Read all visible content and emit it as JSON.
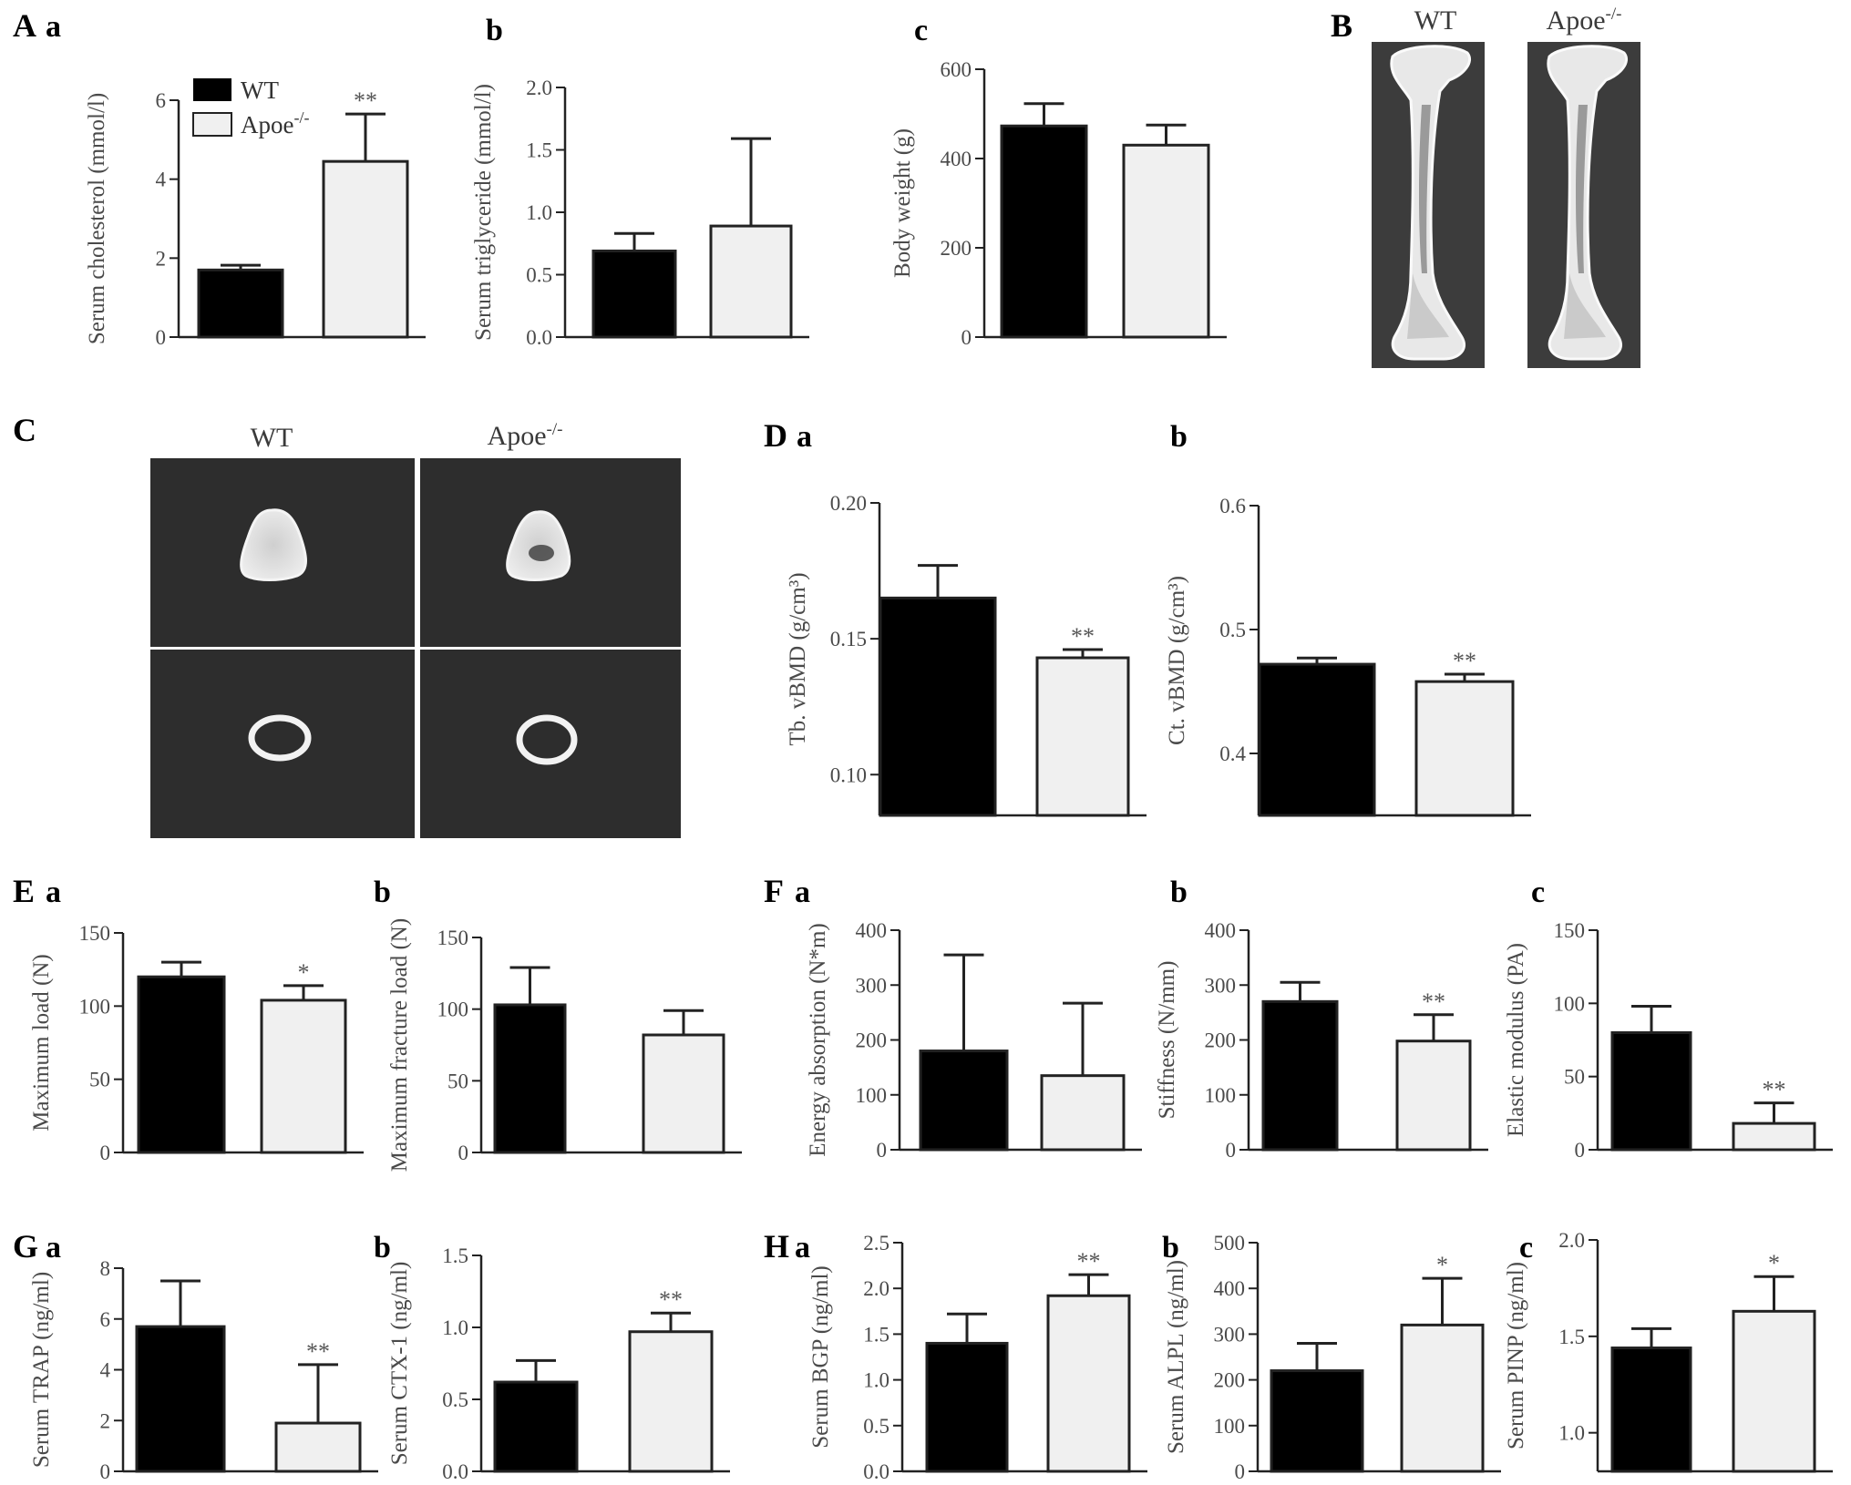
{
  "panels": {
    "A": "A",
    "B": "B",
    "C": "C",
    "D": "D",
    "E": "E",
    "F": "F",
    "G": "G",
    "H": "H",
    "a": "a",
    "b": "b",
    "c": "c"
  },
  "legend": {
    "wt": "WT",
    "apoe": "Apoe",
    "apoe_sup": "-/-"
  },
  "images": {
    "B_left": "WT",
    "B_right": "Apoe",
    "B_right_sup": "-/-",
    "C_left": "WT",
    "C_right": "Apoe",
    "C_right_sup": "-/-"
  },
  "colors": {
    "wt": "#000000",
    "apoe": "#f0f0f0",
    "axis": "#222222",
    "text": "#4a4a4a"
  },
  "chart_data": [
    {
      "id": "Aa",
      "type": "bar",
      "ylabel": "Serum cholesterol (mmol/l)",
      "ylim": [
        0,
        6
      ],
      "ticks": [
        "0",
        "2",
        "4",
        "6"
      ],
      "series": [
        {
          "name": "WT",
          "values": [
            1.7
          ],
          "err": [
            0.12
          ]
        },
        {
          "name": "Apoe-/-",
          "values": [
            4.45
          ],
          "err": [
            1.2
          ],
          "sig": "**"
        }
      ]
    },
    {
      "id": "Ab",
      "type": "bar",
      "ylabel": "Serum triglyceride (mmol/l)",
      "ylim": [
        0,
        2
      ],
      "ticks": [
        "0.0",
        "0.5",
        "1.0",
        "1.5",
        "2.0"
      ],
      "series": [
        {
          "name": "WT",
          "values": [
            0.69
          ],
          "err": [
            0.14
          ]
        },
        {
          "name": "Apoe-/-",
          "values": [
            0.89
          ],
          "err": [
            0.7
          ]
        }
      ]
    },
    {
      "id": "Ac",
      "type": "bar",
      "ylabel": "Body weight (g)",
      "ylim": [
        0,
        600
      ],
      "ticks": [
        "0",
        "200",
        "400",
        "600"
      ],
      "series": [
        {
          "name": "WT",
          "values": [
            473
          ],
          "err": [
            50
          ]
        },
        {
          "name": "Apoe-/-",
          "values": [
            430
          ],
          "err": [
            45
          ]
        }
      ]
    },
    {
      "id": "Da",
      "type": "bar",
      "ylabel": "Tb. vBMD (g/cm³)",
      "ylim": [
        0.085,
        0.2
      ],
      "ticks": [
        "0.10",
        "0.15",
        "0.20"
      ],
      "tickvals": [
        0.1,
        0.15,
        0.2
      ],
      "series": [
        {
          "name": "WT",
          "values": [
            0.165
          ],
          "err": [
            0.012
          ]
        },
        {
          "name": "Apoe-/-",
          "values": [
            0.143
          ],
          "err": [
            0.003
          ],
          "sig": "**"
        }
      ]
    },
    {
      "id": "Db",
      "type": "bar",
      "ylabel": "Ct. vBMD (g/cm³)",
      "ylim": [
        0.35,
        0.6
      ],
      "ticks": [
        "0.4",
        "0.5",
        "0.6"
      ],
      "tickvals": [
        0.4,
        0.5,
        0.6
      ],
      "series": [
        {
          "name": "WT",
          "values": [
            0.472
          ],
          "err": [
            0.005
          ]
        },
        {
          "name": "Apoe-/-",
          "values": [
            0.458
          ],
          "err": [
            0.006
          ],
          "sig": "**"
        }
      ]
    },
    {
      "id": "Ea",
      "type": "bar",
      "ylabel": "Maximum load (N)",
      "ylim": [
        0,
        150
      ],
      "ticks": [
        "0",
        "50",
        "100",
        "150"
      ],
      "series": [
        {
          "name": "WT",
          "values": [
            120
          ],
          "err": [
            10
          ]
        },
        {
          "name": "Apoe-/-",
          "values": [
            104
          ],
          "err": [
            10
          ],
          "sig": "*"
        }
      ]
    },
    {
      "id": "Eb",
      "type": "bar",
      "ylabel": "Maximum fracture load (N)",
      "ylim": [
        0,
        150
      ],
      "ticks": [
        "0",
        "50",
        "100",
        "150"
      ],
      "series": [
        {
          "name": "WT",
          "values": [
            103
          ],
          "err": [
            26
          ]
        },
        {
          "name": "Apoe-/-",
          "values": [
            82
          ],
          "err": [
            17
          ]
        }
      ]
    },
    {
      "id": "Fa",
      "type": "bar",
      "ylabel": "Energy absorption (N*m)",
      "ylim": [
        0,
        400
      ],
      "ticks": [
        "0",
        "100",
        "200",
        "300",
        "400"
      ],
      "series": [
        {
          "name": "WT",
          "values": [
            180
          ],
          "err": [
            175
          ]
        },
        {
          "name": "Apoe-/-",
          "values": [
            135
          ],
          "err": [
            132
          ]
        }
      ]
    },
    {
      "id": "Fb",
      "type": "bar",
      "ylabel": "Stiffness (N/mm)",
      "ylim": [
        0,
        400
      ],
      "ticks": [
        "0",
        "100",
        "200",
        "300",
        "400"
      ],
      "series": [
        {
          "name": "WT",
          "values": [
            270
          ],
          "err": [
            35
          ]
        },
        {
          "name": "Apoe-/-",
          "values": [
            198
          ],
          "err": [
            48
          ],
          "sig": "**"
        }
      ]
    },
    {
      "id": "Fc",
      "type": "bar",
      "ylabel": "Elastic modulus (PA)",
      "ylim": [
        0,
        150
      ],
      "ticks": [
        "0",
        "50",
        "100",
        "150"
      ],
      "series": [
        {
          "name": "WT",
          "values": [
            80
          ],
          "err": [
            18
          ]
        },
        {
          "name": "Apoe-/-",
          "values": [
            18
          ],
          "err": [
            14
          ],
          "sig": "**"
        }
      ]
    },
    {
      "id": "Ga",
      "type": "bar",
      "ylabel": "Serum TRAP (ng/ml)",
      "ylim": [
        0,
        8
      ],
      "ticks": [
        "0",
        "2",
        "4",
        "6",
        "8"
      ],
      "series": [
        {
          "name": "WT",
          "values": [
            5.7
          ],
          "err": [
            1.8
          ]
        },
        {
          "name": "Apoe-/-",
          "values": [
            1.9
          ],
          "err": [
            2.3
          ],
          "sig": "**"
        }
      ]
    },
    {
      "id": "Gb",
      "type": "bar",
      "ylabel": "Serum CTX-1 (ng/ml)",
      "ylim": [
        0,
        1.5
      ],
      "ticks": [
        "0.0",
        "0.5",
        "1.0",
        "1.5"
      ],
      "series": [
        {
          "name": "WT",
          "values": [
            0.62
          ],
          "err": [
            0.15
          ]
        },
        {
          "name": "Apoe-/-",
          "values": [
            0.97
          ],
          "err": [
            0.13
          ],
          "sig": "**"
        }
      ]
    },
    {
      "id": "Ha",
      "type": "bar",
      "ylabel": "Serum BGP (ng/ml)",
      "ylim": [
        0,
        2.5
      ],
      "ticks": [
        "0.0",
        "0.5",
        "1.0",
        "1.5",
        "2.0",
        "2.5"
      ],
      "series": [
        {
          "name": "WT",
          "values": [
            1.4
          ],
          "err": [
            0.32
          ]
        },
        {
          "name": "Apoe-/-",
          "values": [
            1.92
          ],
          "err": [
            0.23
          ],
          "sig": "**"
        }
      ]
    },
    {
      "id": "Hb",
      "type": "bar",
      "ylabel": "Serum ALPL (ng/ml)",
      "ylim": [
        0,
        500
      ],
      "ticks": [
        "0",
        "100",
        "200",
        "300",
        "400",
        "500"
      ],
      "series": [
        {
          "name": "WT",
          "values": [
            220
          ],
          "err": [
            60
          ]
        },
        {
          "name": "Apoe-/-",
          "values": [
            320
          ],
          "err": [
            102
          ],
          "sig": "*"
        }
      ]
    },
    {
      "id": "Hc",
      "type": "bar",
      "ylabel": "Serum PINP (ng/ml)",
      "ylim": [
        0.8,
        2.0
      ],
      "ticks": [
        "1.0",
        "1.5",
        "2.0"
      ],
      "tickvals": [
        1.0,
        1.5,
        2.0
      ],
      "series": [
        {
          "name": "WT",
          "values": [
            1.44
          ],
          "err": [
            0.1
          ]
        },
        {
          "name": "Apoe-/-",
          "values": [
            1.63
          ],
          "err": [
            0.18
          ],
          "sig": "*"
        }
      ]
    }
  ]
}
